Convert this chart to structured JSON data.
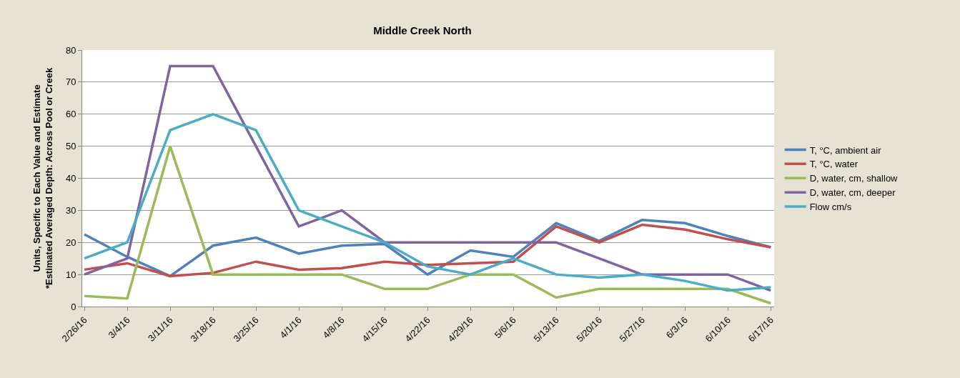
{
  "chart_data": {
    "type": "line",
    "title": "Middle Creek North",
    "ylabel": "Units, Specific to Each Value and Estimate\n*Estimated Averaged Depth: Across Pool or Creek",
    "categories": [
      "2/26/16",
      "3/4/16",
      "3/11/16",
      "3/18/16",
      "3/25/16",
      "4/1/16",
      "4/8/16",
      "4/15/16",
      "4/22/16",
      "4/29/16",
      "5/6/16",
      "5/13/16",
      "5/20/16",
      "5/27/16",
      "6/3/16",
      "6/10/16",
      "6/17/16"
    ],
    "series": [
      {
        "name": "T, °C, ambient air",
        "color": "#4f81bd",
        "values": [
          22.5,
          15.5,
          9.5,
          19,
          21.5,
          16.5,
          19,
          19.5,
          10,
          17.5,
          15.5,
          26,
          20.5,
          27,
          26,
          22,
          18.5
        ]
      },
      {
        "name": "T, °C, water",
        "color": "#c0504d",
        "values": [
          11.5,
          13.5,
          9.5,
          10.5,
          14,
          11.5,
          12,
          14,
          13,
          13.5,
          14,
          25,
          20,
          25.5,
          24,
          21,
          18.5
        ]
      },
      {
        "name": "D, water, cm, shallow",
        "color": "#9bbb59",
        "values": [
          3.3,
          2.5,
          50,
          10,
          10,
          10,
          10,
          5.5,
          5.5,
          10,
          10,
          2.8,
          5.5,
          5.5,
          5.5,
          5.5,
          1
        ]
      },
      {
        "name": "D, water, cm, deeper",
        "color": "#8064a2",
        "values": [
          10,
          15,
          75,
          75,
          50,
          25,
          30,
          20,
          20,
          20,
          20,
          20,
          15,
          10,
          10,
          10,
          5
        ]
      },
      {
        "name": "Flow cm/s",
        "color": "#4bacc6",
        "values": [
          15,
          20,
          55,
          60,
          55,
          30,
          25,
          20,
          12.5,
          10,
          15,
          10,
          9,
          10,
          8,
          5,
          6
        ]
      }
    ],
    "ylim": [
      0,
      80
    ],
    "yticks": [
      0,
      10,
      20,
      30,
      40,
      50,
      60,
      70,
      80
    ],
    "grid": "y",
    "legend": "right",
    "marker": "none",
    "line_style": "solid"
  }
}
